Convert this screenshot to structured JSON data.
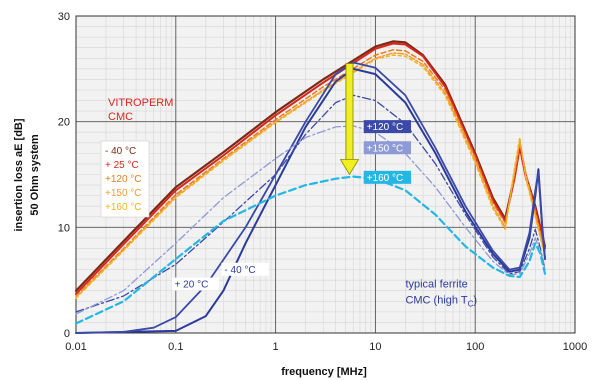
{
  "chart_data": {
    "type": "line",
    "title": "",
    "xlabel": "frequency [MHz]",
    "ylabel_lines": [
      "insertion loss aE [dB]",
      "50 Ohm system"
    ],
    "x_scale": "log",
    "xlim": [
      0.01,
      1000
    ],
    "ylim": [
      0,
      30
    ],
    "x_ticks": [
      {
        "v": 0.01,
        "label": "0.01"
      },
      {
        "v": 0.1,
        "label": "0.1"
      },
      {
        "v": 1,
        "label": "1"
      },
      {
        "v": 10,
        "label": "10"
      },
      {
        "v": 100,
        "label": "100"
      },
      {
        "v": 1000,
        "label": "1000"
      }
    ],
    "y_ticks": [
      {
        "v": 0,
        "label": "0"
      },
      {
        "v": 10,
        "label": "10"
      },
      {
        "v": 20,
        "label": "20"
      },
      {
        "v": 30,
        "label": "30"
      }
    ],
    "grid": true,
    "vitroperm_label": [
      "VITROPERM",
      "CMC"
    ],
    "vitroperm_color": "#d9261c",
    "ferrite_label": [
      "typical ferrite",
      "CMC (high T",
      "C",
      ")"
    ],
    "ferrite_color": "#2c3a9c",
    "temperature_legend": [
      {
        "label": "- 40 °C",
        "color": "#7a2b16"
      },
      {
        "label": "+ 25 °C",
        "color": "#d9261c"
      },
      {
        "label": "+120 °C",
        "color": "#ee7a1c"
      },
      {
        "label": "+150 °C",
        "color": "#f59b3a"
      },
      {
        "label": "+160 °C",
        "color": "#f0b41c"
      }
    ],
    "annotations": [
      {
        "id": "ann-120",
        "label": "+120 °C",
        "x": 8,
        "y": 19.2,
        "color": "#ffffff",
        "bg": "#3b4aa8"
      },
      {
        "id": "ann-150",
        "label": "+150 °C",
        "x": 8,
        "y": 17.2,
        "color": "#ffffff",
        "bg": "#8e9ad6"
      },
      {
        "id": "ann-160",
        "label": "+160 °C",
        "x": 8,
        "y": 14.4,
        "color": "#ffffff",
        "bg": "#25b7e3"
      },
      {
        "id": "ann-m40",
        "label": "- 40 °C",
        "x": 0.3,
        "y": 5.7,
        "color": "#2c3a9c",
        "bg": "#ffffff"
      },
      {
        "id": "ann-p20",
        "label": "+ 20 °C",
        "x": 0.095,
        "y": 4.3,
        "color": "#2c3a9c",
        "bg": "#ffffff"
      }
    ],
    "arrow": {
      "x": 5.5,
      "y_from": 25.5,
      "y_to": 15.0,
      "color": "#f0f020"
    },
    "series": [
      {
        "id": "vp-m40",
        "color": "#7a2b16",
        "width": 2.2,
        "dash": "",
        "x": [
          0.01,
          0.03,
          0.1,
          0.3,
          1,
          3,
          10,
          15,
          20,
          30,
          50,
          100,
          150,
          200,
          250,
          280,
          320,
          400,
          500
        ],
        "y": [
          4.0,
          8.7,
          13.8,
          17.1,
          20.9,
          24.0,
          27.1,
          27.6,
          27.5,
          26.3,
          23.5,
          17.0,
          12.8,
          10.8,
          15.0,
          17.8,
          15.0,
          12.0,
          8.2
        ]
      },
      {
        "id": "vp-p25",
        "color": "#d9261c",
        "width": 2.0,
        "dash": "",
        "x": [
          0.01,
          0.03,
          0.1,
          0.3,
          1,
          3,
          10,
          15,
          20,
          30,
          50,
          100,
          150,
          200,
          250,
          280,
          320,
          400,
          500
        ],
        "y": [
          3.7,
          8.4,
          13.5,
          16.8,
          20.6,
          23.7,
          26.9,
          27.4,
          27.3,
          26.2,
          23.3,
          16.8,
          12.6,
          10.6,
          14.8,
          17.6,
          14.8,
          11.8,
          8.0
        ]
      },
      {
        "id": "vp-p120",
        "color": "#ee7a1c",
        "width": 1.5,
        "dash": "5,3",
        "x": [
          0.01,
          0.03,
          0.1,
          0.3,
          1,
          3,
          10,
          15,
          20,
          30,
          50,
          100,
          150,
          200,
          250,
          280,
          320,
          400,
          500
        ],
        "y": [
          3.5,
          8.0,
          13.1,
          16.5,
          20.2,
          23.3,
          26.3,
          26.8,
          26.7,
          25.7,
          23.0,
          16.6,
          12.3,
          10.4,
          15.2,
          18.0,
          15.2,
          11.5,
          7.6
        ]
      },
      {
        "id": "vp-p150",
        "color": "#f59b3a",
        "width": 1.5,
        "dash": "6,2,2,2",
        "x": [
          0.01,
          0.03,
          0.1,
          0.3,
          1,
          3,
          10,
          15,
          20,
          30,
          50,
          100,
          150,
          200,
          250,
          280,
          320,
          400,
          500
        ],
        "y": [
          3.4,
          7.9,
          12.9,
          16.4,
          20.0,
          23.0,
          26.0,
          26.5,
          26.4,
          25.4,
          22.7,
          16.3,
          12.0,
          10.0,
          15.5,
          18.2,
          15.0,
          11.2,
          7.4
        ]
      },
      {
        "id": "vp-p160",
        "color": "#f0b41c",
        "width": 1.5,
        "dash": "3,3",
        "x": [
          0.01,
          0.03,
          0.1,
          0.3,
          1,
          3,
          10,
          15,
          20,
          30,
          50,
          100,
          150,
          200,
          250,
          280,
          320,
          400,
          500
        ],
        "y": [
          3.3,
          7.8,
          12.8,
          16.3,
          19.9,
          22.9,
          25.9,
          26.3,
          26.2,
          25.2,
          22.5,
          16.1,
          11.8,
          9.8,
          15.8,
          18.5,
          14.8,
          11.0,
          7.2
        ]
      },
      {
        "id": "fe-m40",
        "color": "#2c3a9c",
        "width": 2.0,
        "dash": "",
        "x": [
          0.01,
          0.1,
          0.2,
          0.3,
          0.5,
          1,
          2,
          4,
          6,
          10,
          20,
          40,
          80,
          150,
          220,
          280,
          350,
          400,
          430,
          470,
          500
        ],
        "y": [
          0.0,
          0.2,
          1.6,
          4.0,
          8.5,
          14.0,
          19.5,
          23.8,
          25.0,
          24.5,
          21.8,
          17.0,
          11.5,
          7.5,
          5.8,
          6.0,
          9.0,
          13.0,
          15.5,
          10.0,
          7.0
        ]
      },
      {
        "id": "fe-p20",
        "color": "#3b4aa8",
        "width": 1.8,
        "dash": "",
        "x": [
          0.01,
          0.03,
          0.06,
          0.1,
          0.2,
          0.5,
          1,
          2,
          4,
          6,
          10,
          20,
          40,
          80,
          150,
          220,
          280,
          350,
          400,
          430,
          470,
          500
        ],
        "y": [
          0.0,
          0.1,
          0.5,
          1.5,
          4.5,
          10.0,
          15.0,
          20.0,
          24.5,
          25.6,
          25.1,
          22.5,
          17.5,
          12.0,
          7.8,
          6.0,
          6.2,
          9.5,
          13.5,
          15.2,
          9.8,
          7.0
        ]
      },
      {
        "id": "fe-p120",
        "color": "#3b4aa8",
        "width": 1.3,
        "dash": "8,3,2,3",
        "x": [
          0.01,
          0.03,
          0.1,
          0.3,
          1,
          2,
          4,
          6,
          10,
          20,
          40,
          80,
          150,
          220,
          280,
          350,
          400,
          450,
          500
        ],
        "y": [
          2.0,
          3.5,
          6.5,
          10.5,
          15.0,
          18.8,
          21.8,
          22.5,
          22.0,
          19.8,
          16.0,
          11.2,
          7.2,
          5.6,
          5.8,
          8.0,
          9.8,
          8.0,
          6.0
        ]
      },
      {
        "id": "fe-p150",
        "color": "#8e9ad6",
        "width": 1.3,
        "dash": "8,3,2,3",
        "x": [
          0.01,
          0.03,
          0.1,
          0.3,
          1,
          2,
          4,
          6,
          10,
          20,
          40,
          80,
          150,
          220,
          280,
          350,
          400,
          450,
          500
        ],
        "y": [
          1.8,
          4.0,
          8.5,
          12.8,
          16.5,
          18.5,
          19.5,
          19.6,
          19.0,
          17.0,
          13.8,
          10.0,
          6.8,
          5.5,
          5.6,
          7.5,
          9.0,
          7.8,
          6.0
        ]
      },
      {
        "id": "fe-p160",
        "color": "#25b7e3",
        "width": 2.2,
        "dash": "7,4",
        "x": [
          0.01,
          0.03,
          0.1,
          0.3,
          1,
          2,
          4,
          6,
          10,
          20,
          40,
          80,
          150,
          220,
          280,
          350,
          400,
          450,
          500
        ],
        "y": [
          0.9,
          3.0,
          7.0,
          10.6,
          13.0,
          14.0,
          14.6,
          14.8,
          14.6,
          13.5,
          11.2,
          8.2,
          6.2,
          5.4,
          5.3,
          6.8,
          8.5,
          7.5,
          5.6
        ]
      }
    ]
  }
}
